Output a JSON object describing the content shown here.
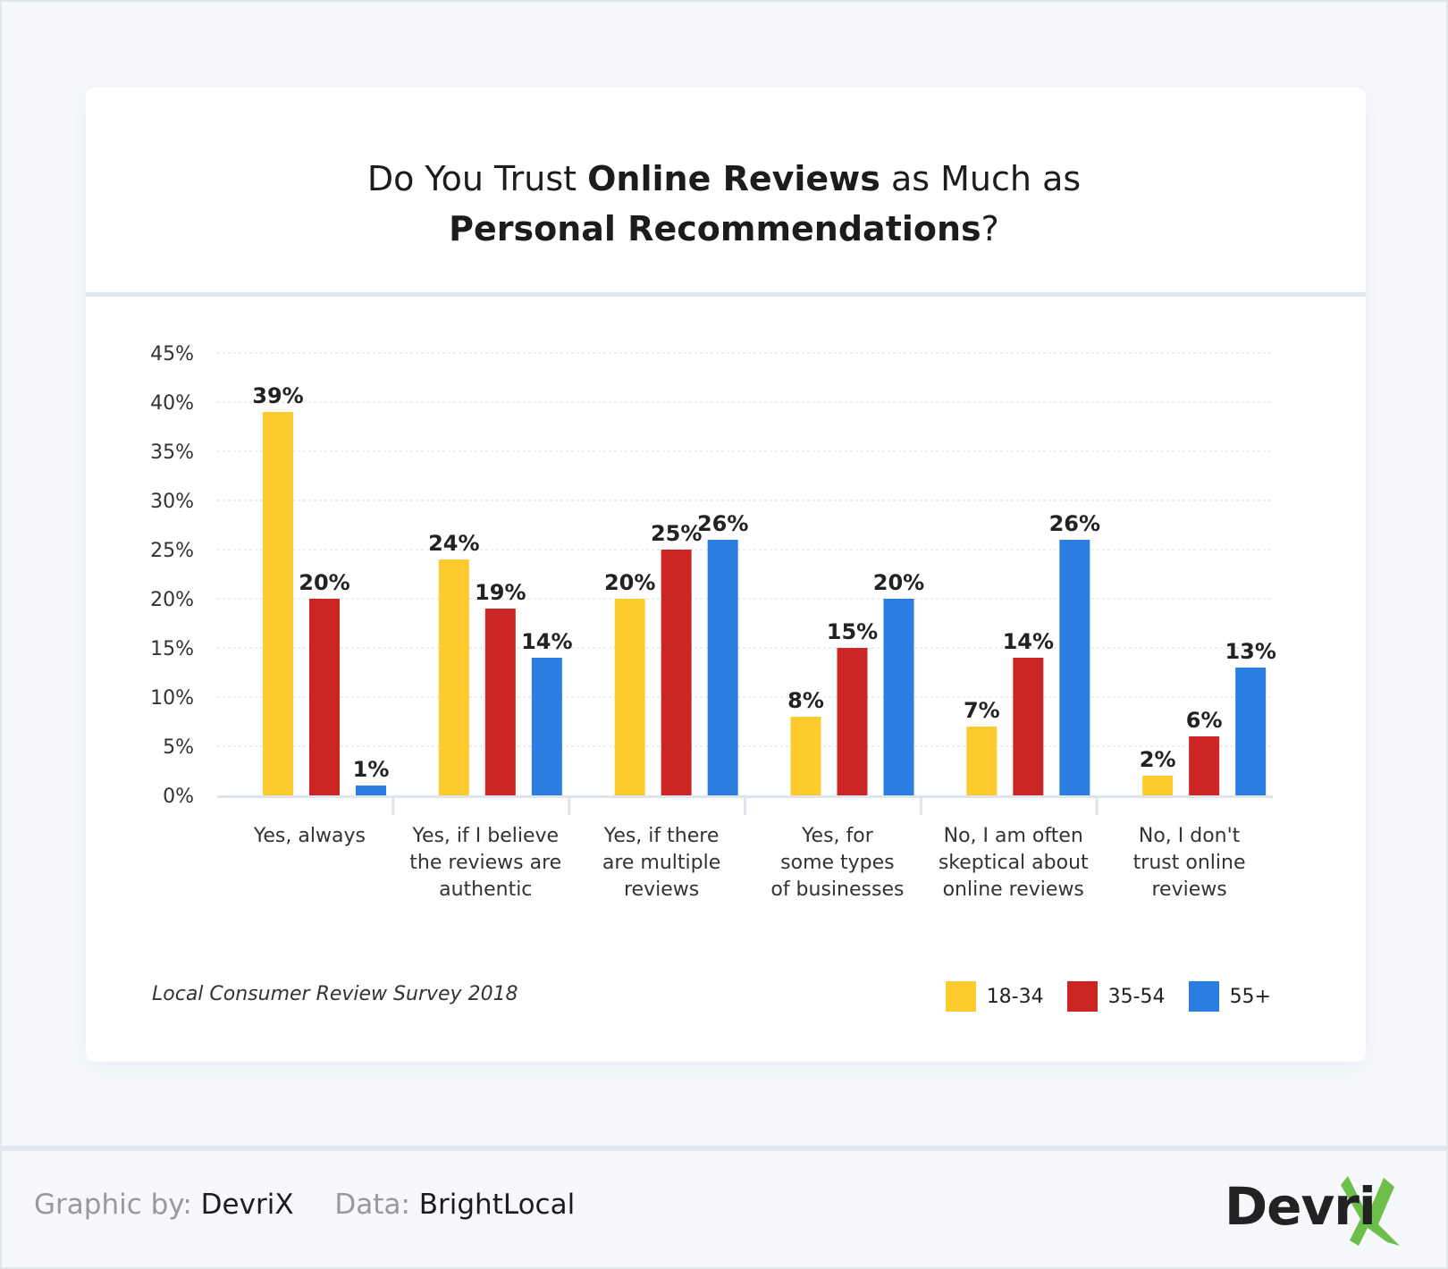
{
  "title": {
    "part1": "Do You Trust ",
    "bold1": "Online Reviews",
    "part2": " as Much as",
    "bold2": "Personal Recommendations",
    "part3": "?"
  },
  "source": "Local Consumer Review Survey 2018",
  "footer": {
    "graphic_label": "Graphic by:",
    "graphic_value": "DevriX",
    "data_label": "Data:",
    "data_value": "BrightLocal",
    "logo": "DevriX"
  },
  "chart_data": {
    "type": "bar",
    "title": "Do You Trust Online Reviews as Much as Personal Recommendations?",
    "categories": [
      [
        "Yes, always"
      ],
      [
        "Yes, if I believe",
        "the reviews are",
        "authentic"
      ],
      [
        "Yes, if there",
        "are multiple",
        "reviews"
      ],
      [
        "Yes, for",
        "some types",
        "of businesses"
      ],
      [
        "No, I am often",
        "skeptical about",
        "online reviews"
      ],
      [
        "No, I don't",
        "trust online",
        "reviews"
      ]
    ],
    "series": [
      {
        "name": "18-34",
        "color": "#fdcb2e",
        "values": [
          39,
          24,
          20,
          8,
          7,
          2
        ]
      },
      {
        "name": "35-54",
        "color": "#cc2624",
        "values": [
          20,
          19,
          25,
          15,
          14,
          6
        ]
      },
      {
        "name": "55+",
        "color": "#2a7de1",
        "values": [
          1,
          14,
          26,
          20,
          26,
          13
        ]
      }
    ],
    "ylim": [
      0,
      45
    ],
    "yticks": [
      "0%",
      "5%",
      "10%",
      "15%",
      "20%",
      "25%",
      "30%",
      "35%",
      "40%",
      "45%"
    ],
    "value_suffix": "%",
    "grid": true,
    "legend": "bottom-right"
  }
}
